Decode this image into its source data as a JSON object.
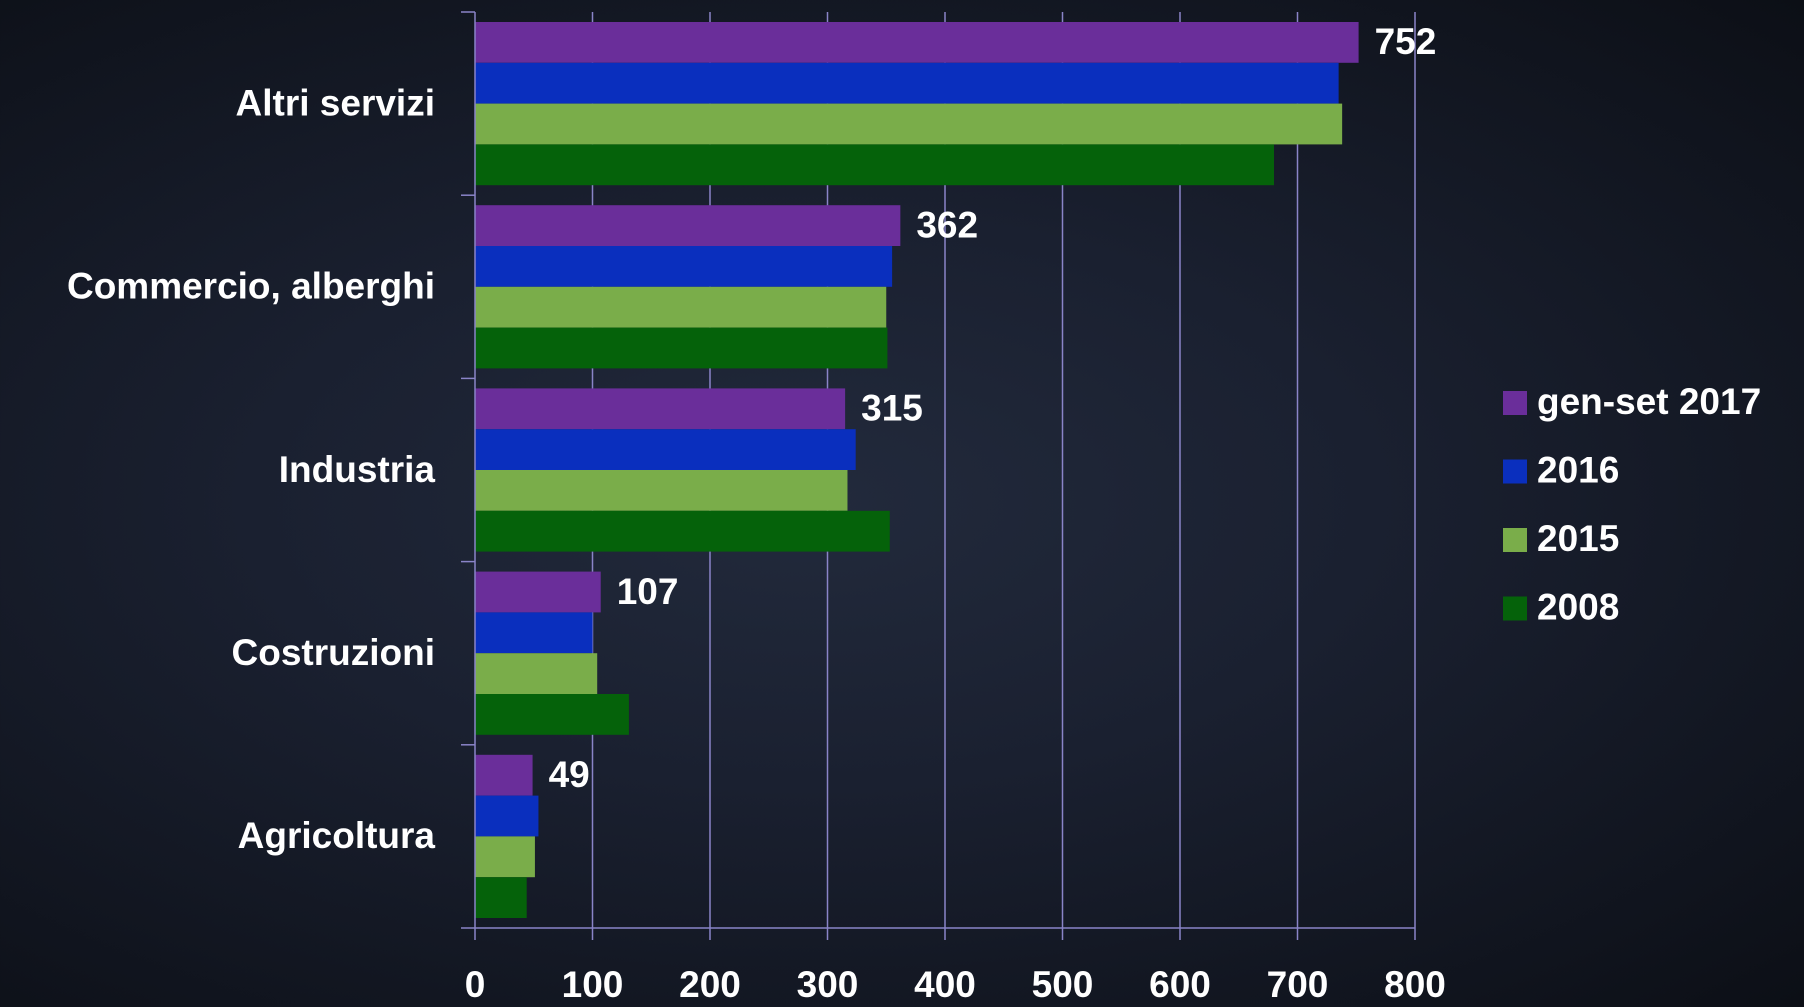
{
  "chart_data": {
    "type": "bar",
    "orientation": "horizontal",
    "categories": [
      "Altri servizi",
      "Commercio, alberghi",
      "Industria",
      "Costruzioni",
      "Agricoltura"
    ],
    "series": [
      {
        "name": "gen-set 2017",
        "color": "#6a2e9a",
        "values": [
          752,
          362,
          315,
          107,
          49
        ]
      },
      {
        "name": "2016",
        "color": "#0a2fbe",
        "values": [
          735,
          355,
          324,
          100,
          54
        ]
      },
      {
        "name": "2015",
        "color": "#7aad4a",
        "values": [
          738,
          350,
          317,
          104,
          51
        ]
      },
      {
        "name": "2008",
        "color": "#05620a",
        "values": [
          680,
          351,
          353,
          131,
          44
        ]
      }
    ],
    "data_labels": {
      "series": "gen-set 2017",
      "values": [
        "752",
        "362",
        "315",
        "107",
        "49"
      ]
    },
    "xlim": [
      0,
      800
    ],
    "xticks": [
      0,
      100,
      200,
      300,
      400,
      500,
      600,
      700,
      800
    ],
    "xlabel": "",
    "ylabel": "",
    "title": "",
    "grid": true,
    "grid_color": "#8a84c8",
    "legend_position": "right"
  }
}
